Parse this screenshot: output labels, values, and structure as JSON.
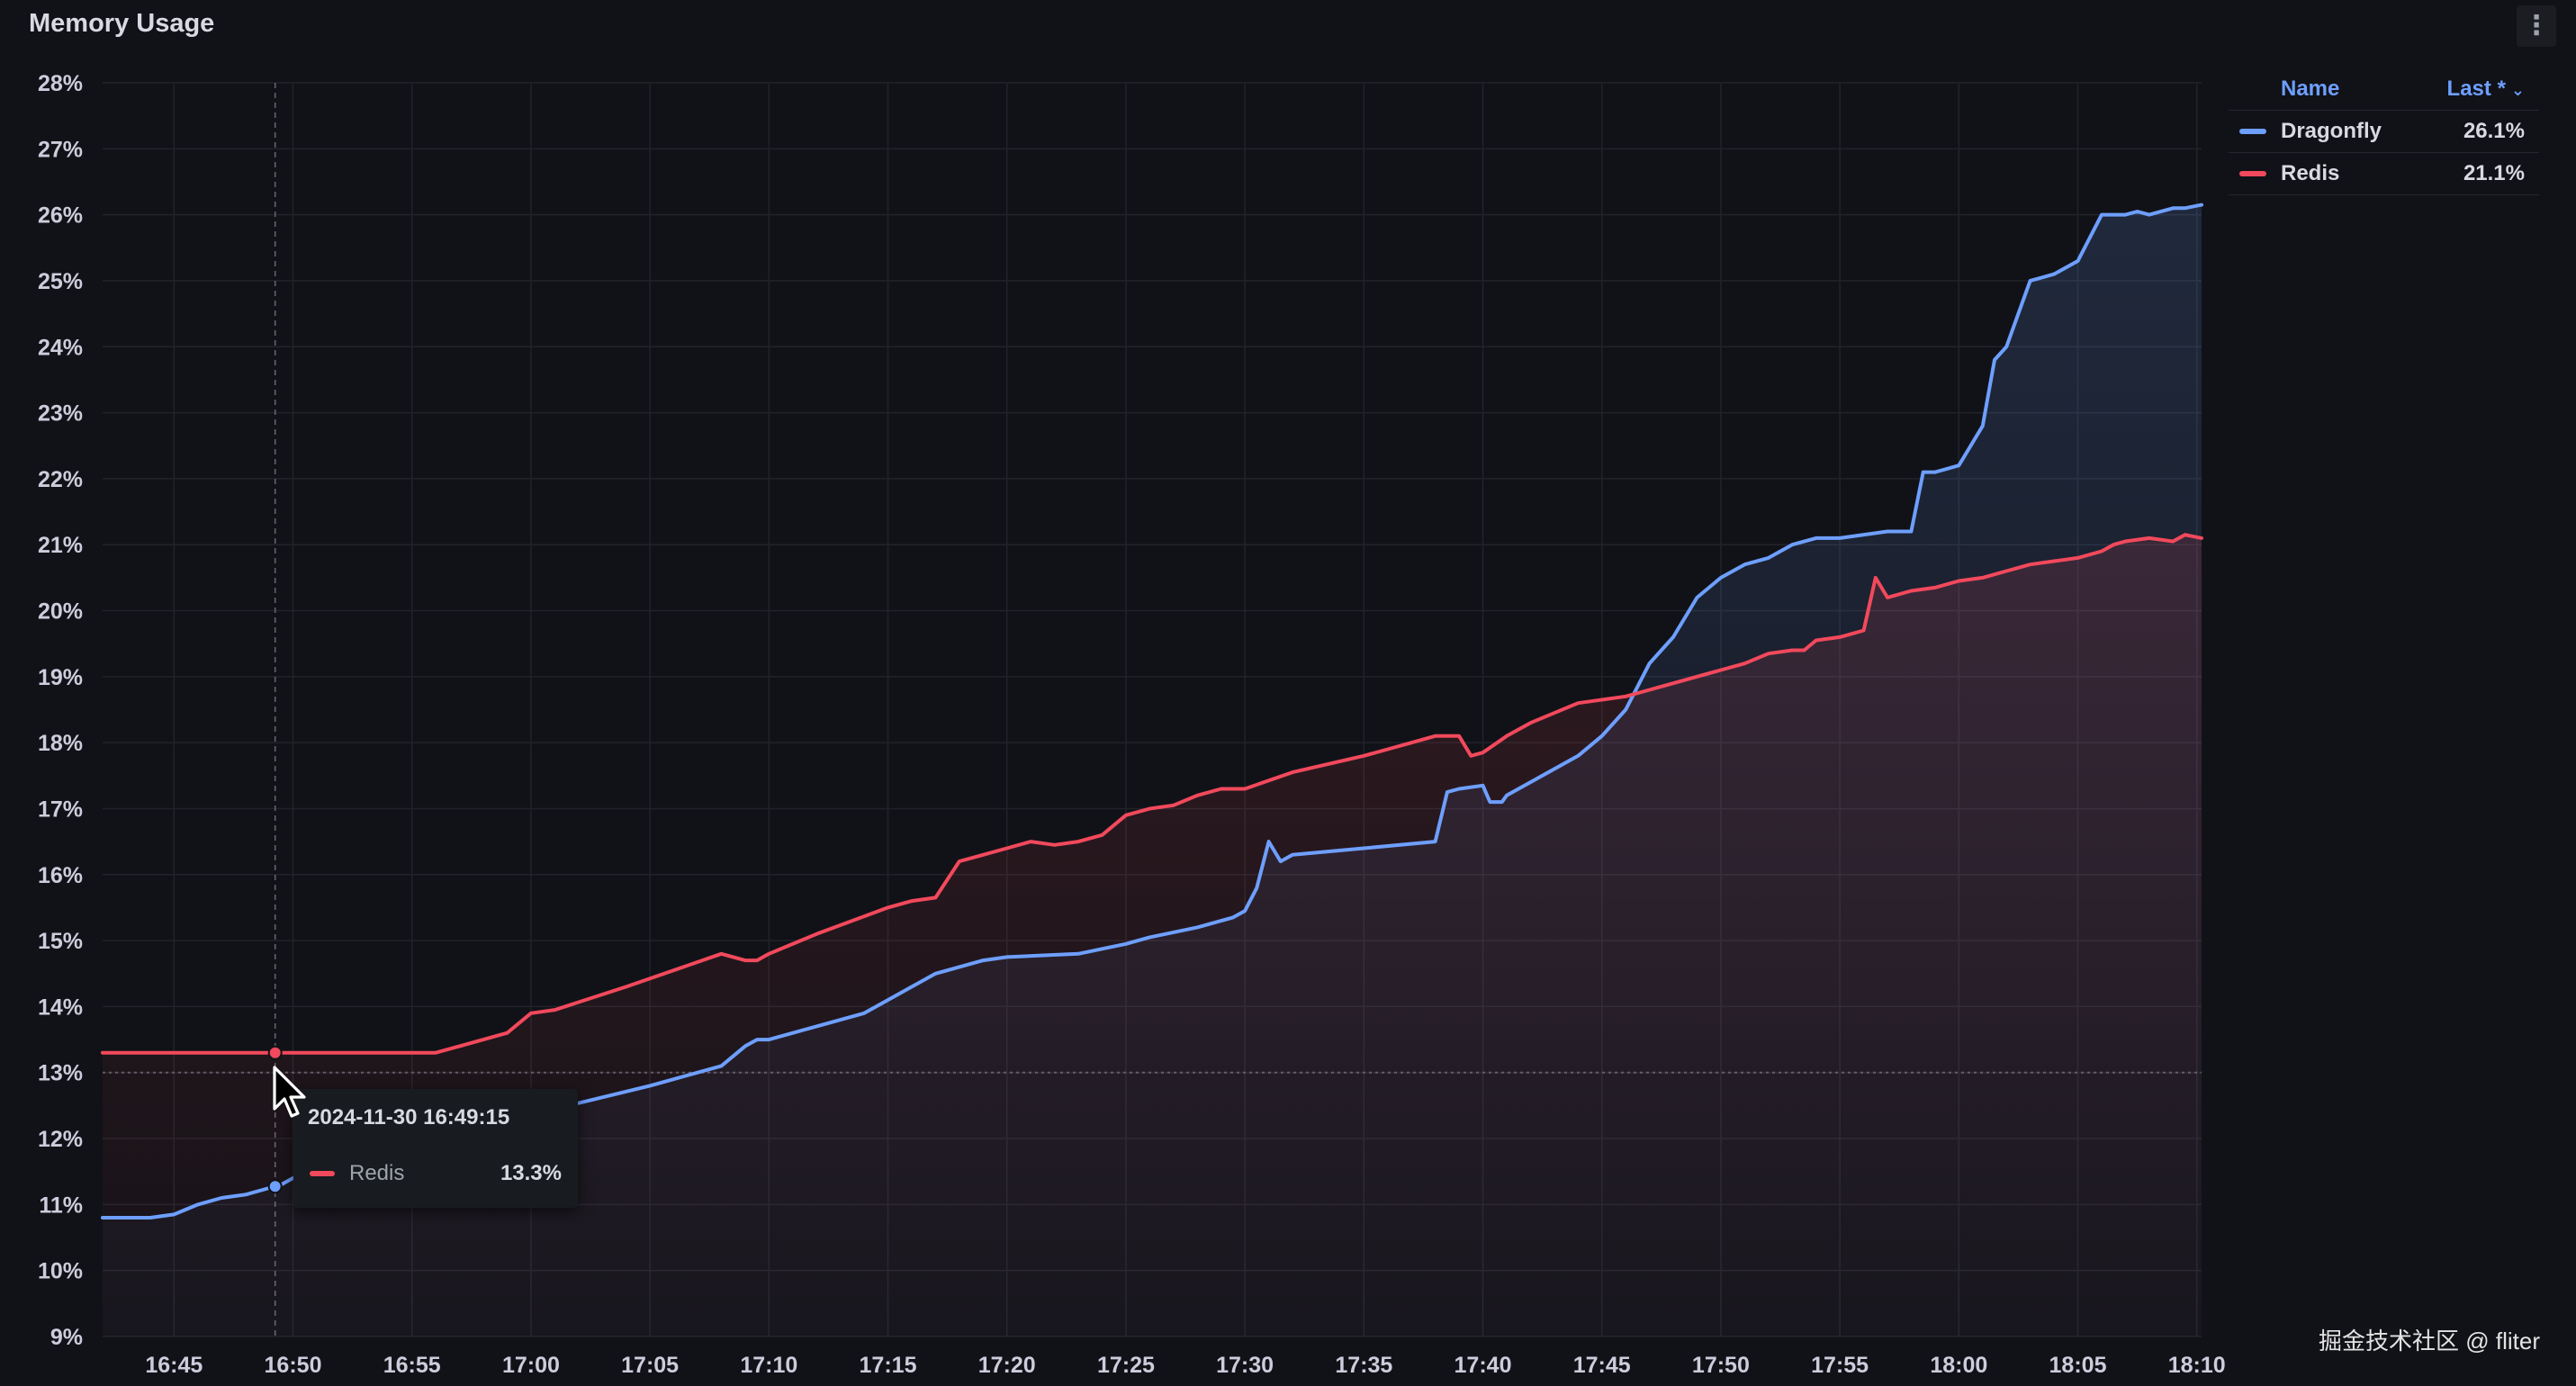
{
  "panel": {
    "title": "Memory Usage",
    "menu_icon": "vertical-ellipsis-icon"
  },
  "legend": {
    "name_header": "Name",
    "last_header": "Last *",
    "items": [
      {
        "name": "Dragonfly",
        "last": "26.1%",
        "color": "#6e9fff"
      },
      {
        "name": "Redis",
        "last": "21.1%",
        "color": "#f2495c"
      }
    ]
  },
  "tooltip": {
    "time": "2024-11-30 16:49:15",
    "series": "Redis",
    "value": "13.3%"
  },
  "watermark": "掘金技术社区 @ fliter",
  "chart_data": {
    "type": "area",
    "grid": true,
    "legend_position": "right",
    "y_ticks": [
      "9%",
      "10%",
      "11%",
      "12%",
      "13%",
      "14%",
      "15%",
      "16%",
      "17%",
      "18%",
      "19%",
      "20%",
      "21%",
      "22%",
      "23%",
      "24%",
      "25%",
      "26%",
      "27%",
      "28%"
    ],
    "ylim": [
      9,
      28
    ],
    "x_ticks": [
      "16:45",
      "16:50",
      "16:55",
      "17:00",
      "17:05",
      "17:10",
      "17:15",
      "17:20",
      "17:25",
      "17:30",
      "17:35",
      "17:40",
      "17:45",
      "17:50",
      "17:55",
      "18:00",
      "18:05",
      "18:10"
    ],
    "x_tick_minutes": [
      1005,
      1010,
      1015,
      1020,
      1025,
      1030,
      1035,
      1040,
      1045,
      1050,
      1055,
      1060,
      1065,
      1070,
      1075,
      1080,
      1085,
      1090
    ],
    "xlim": [
      1002,
      1090.2
    ],
    "threshold": 13.0,
    "crosshair_x": 1009.25,
    "series": [
      {
        "name": "Dragonfly",
        "color": "#6e9fff",
        "x": [
          1002,
          1004,
          1005,
          1006,
          1007,
          1008,
          1009,
          1009.5,
          1010,
          1015,
          1020,
          1021,
          1025,
          1028,
          1029,
          1029.5,
          1030,
          1032,
          1034,
          1035,
          1036,
          1037,
          1038,
          1039,
          1040,
          1043,
          1045,
          1046,
          1048,
          1049,
          1049.5,
          1050,
          1050.5,
          1051,
          1051.5,
          1052,
          1055,
          1058,
          1058.5,
          1059,
          1060,
          1060.3,
          1060.8,
          1061,
          1062,
          1064,
          1065,
          1066,
          1067,
          1067.5,
          1068,
          1069,
          1070,
          1071,
          1072,
          1073,
          1074,
          1075,
          1077,
          1078,
          1078.5,
          1079,
          1080,
          1081,
          1081.5,
          1082,
          1083,
          1083.5,
          1084,
          1085,
          1086,
          1087,
          1087.5,
          1088,
          1089,
          1089.5,
          1090.2
        ],
        "y": [
          10.8,
          10.8,
          10.85,
          11.0,
          11.1,
          11.15,
          11.25,
          11.3,
          11.4,
          11.9,
          12.4,
          12.45,
          12.8,
          13.1,
          13.4,
          13.5,
          13.5,
          13.7,
          13.9,
          14.1,
          14.3,
          14.5,
          14.6,
          14.7,
          14.75,
          14.8,
          14.95,
          15.05,
          15.2,
          15.3,
          15.35,
          15.45,
          15.8,
          16.5,
          16.2,
          16.3,
          16.4,
          16.5,
          17.25,
          17.3,
          17.35,
          17.1,
          17.1,
          17.2,
          17.4,
          17.8,
          18.1,
          18.5,
          19.2,
          19.4,
          19.6,
          20.2,
          20.5,
          20.7,
          20.8,
          21.0,
          21.1,
          21.1,
          21.2,
          21.2,
          22.1,
          22.1,
          22.2,
          22.8,
          23.8,
          24.0,
          25.0,
          25.05,
          25.1,
          25.3,
          26.0,
          26.0,
          26.05,
          26.0,
          26.1,
          26.1,
          26.15
        ]
      },
      {
        "name": "Redis",
        "color": "#f2495c",
        "x": [
          1002,
          1005,
          1010,
          1015,
          1016,
          1017,
          1018,
          1019,
          1020,
          1021,
          1024,
          1028,
          1029,
          1029.5,
          1030,
          1032,
          1035,
          1036,
          1037,
          1038,
          1039,
          1040,
          1041,
          1042,
          1043,
          1044,
          1045,
          1046,
          1047,
          1048,
          1049,
          1050,
          1052,
          1055,
          1056,
          1057,
          1058,
          1059,
          1059.5,
          1060,
          1061,
          1061.5,
          1062,
          1063,
          1064,
          1065,
          1066,
          1067,
          1068,
          1069,
          1070,
          1071,
          1072,
          1073,
          1073.5,
          1074,
          1075,
          1076,
          1076.5,
          1077,
          1078,
          1079,
          1080,
          1081,
          1082,
          1083,
          1084,
          1085,
          1086,
          1086.5,
          1087,
          1088,
          1089,
          1089.5,
          1090.2
        ],
        "y": [
          13.3,
          13.3,
          13.3,
          13.3,
          13.3,
          13.4,
          13.5,
          13.6,
          13.9,
          13.95,
          14.3,
          14.8,
          14.7,
          14.7,
          14.8,
          15.1,
          15.5,
          15.6,
          15.65,
          16.2,
          16.3,
          16.4,
          16.5,
          16.45,
          16.5,
          16.6,
          16.9,
          17.0,
          17.05,
          17.2,
          17.3,
          17.3,
          17.55,
          17.8,
          17.9,
          18.0,
          18.1,
          18.1,
          17.8,
          17.85,
          18.1,
          18.2,
          18.3,
          18.45,
          18.6,
          18.65,
          18.7,
          18.8,
          18.9,
          19.0,
          19.1,
          19.2,
          19.35,
          19.4,
          19.4,
          19.55,
          19.6,
          19.7,
          20.5,
          20.2,
          20.3,
          20.35,
          20.45,
          20.5,
          20.6,
          20.7,
          20.75,
          20.8,
          20.9,
          21.0,
          21.05,
          21.1,
          21.05,
          21.15,
          21.1
        ]
      }
    ]
  }
}
